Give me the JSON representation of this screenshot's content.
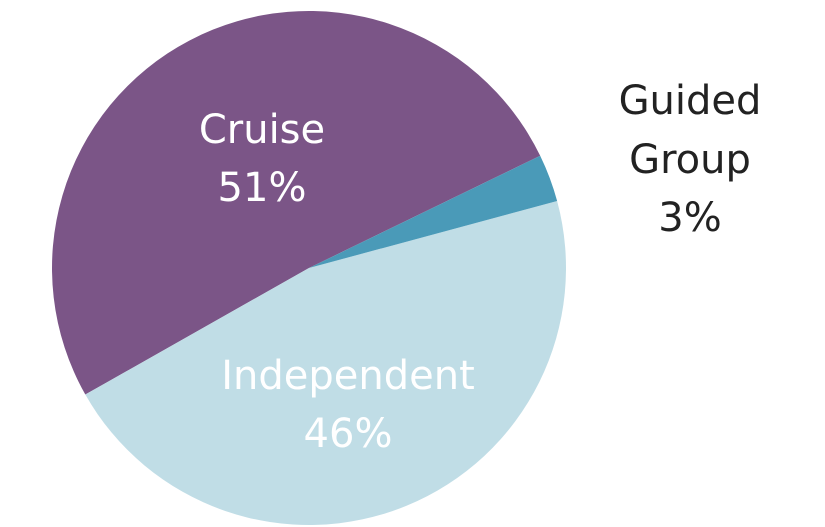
{
  "chart_data": {
    "type": "pie",
    "categories": [
      "Cruise",
      "Independent",
      "Guided Group"
    ],
    "values": [
      51,
      46,
      3
    ],
    "value_labels": [
      "51%",
      "46%",
      "3%"
    ],
    "colors": [
      "#7b5587",
      "#c0dde6",
      "#4a9ab8"
    ]
  }
}
